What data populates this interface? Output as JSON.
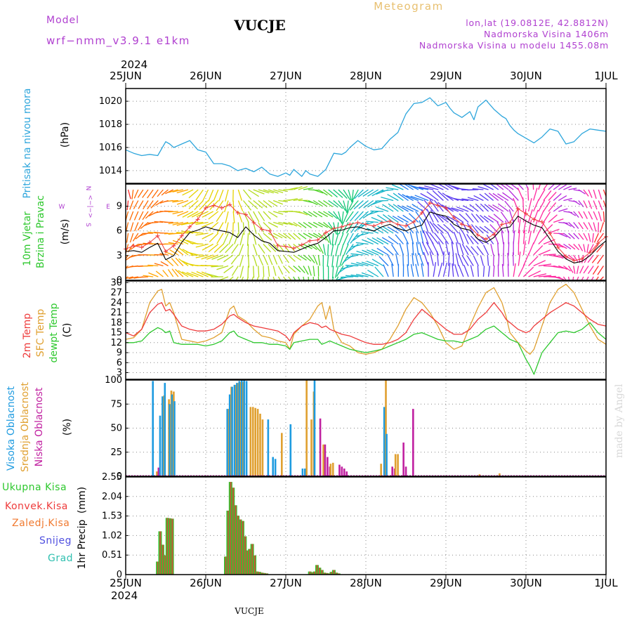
{
  "header": {
    "title": "VUCJE",
    "model_label": "Model",
    "model_name": "wrf−nmm_v3.9.1  e1km",
    "meteogram_label": "Meteogram",
    "coords": "lon,lat (19.0812E, 42.8812N)",
    "elevation": "Nadmorska Visina 1406m",
    "model_elevation": "Nadmorska Visina u modelu 1455.08m",
    "year_top": "2024",
    "year_bottom": "2024",
    "footer": "VUCJE",
    "watermark": "made by Angel"
  },
  "colors": {
    "pressure": "#2ea6dc",
    "temp2m": "#ee3b3b",
    "sfc": "#e0a030",
    "dew": "#2ec82e",
    "wind_black": "#000000",
    "wind_red": "#ee3b3b",
    "cloud_high": "#1e9be0",
    "cloud_mid": "#e0a030",
    "cloud_low": "#c020a0",
    "grid": "#888888",
    "precip_total": "#2ec82e",
    "precip_conv": "#ee3b3b",
    "precip_frozen": "#f07a30",
    "snow": "#5050e0",
    "hail": "#30c0b0",
    "watermark": "#d8d8d8",
    "purple_text": "#b040d0",
    "orange_text": "#e8c070"
  },
  "x_axis": {
    "labels": [
      "25JUN",
      "26JUN",
      "27JUN",
      "28JUN",
      "29JUN",
      "30JUN",
      "1JUL"
    ]
  },
  "chart_data": [
    {
      "type": "line",
      "panel": "pressure",
      "ylabel": "Pritisak na nivou mora",
      "unit": "(hPa)",
      "yticks": [
        1014,
        1016,
        1018,
        1020
      ],
      "ylim": [
        1012.9,
        1021.1
      ],
      "x_days": [
        0,
        0.1,
        0.2,
        0.3,
        0.4,
        0.5,
        0.55,
        0.6,
        0.7,
        0.8,
        0.9,
        1.0,
        1.1,
        1.2,
        1.3,
        1.4,
        1.5,
        1.6,
        1.7,
        1.8,
        1.9,
        2.0,
        2.05,
        2.1,
        2.2,
        2.25,
        2.3,
        2.4,
        2.5,
        2.6,
        2.7,
        2.75,
        2.8,
        2.9,
        3.0,
        3.1,
        3.2,
        3.3,
        3.4,
        3.5,
        3.6,
        3.7,
        3.8,
        3.9,
        4.0,
        4.05,
        4.1,
        4.2,
        4.3,
        4.35,
        4.4,
        4.5,
        4.6,
        4.7,
        4.75,
        4.8,
        4.85,
        4.9,
        5.0,
        5.1,
        5.2,
        5.3,
        5.4,
        5.5,
        5.6,
        5.7,
        5.8,
        5.9,
        6.0
      ],
      "series": [
        {
          "values": [
            1015.8,
            1015.5,
            1015.3,
            1015.4,
            1015.3,
            1016.5,
            1016.3,
            1016.0,
            1016.3,
            1016.6,
            1015.8,
            1015.6,
            1014.6,
            1014.6,
            1014.4,
            1014.0,
            1014.2,
            1013.9,
            1014.3,
            1013.7,
            1013.5,
            1013.8,
            1013.6,
            1014.1,
            1013.5,
            1014.0,
            1013.7,
            1013.5,
            1014.1,
            1015.5,
            1015.4,
            1015.6,
            1016.0,
            1016.6,
            1016.1,
            1015.8,
            1015.9,
            1016.7,
            1017.3,
            1018.9,
            1019.8,
            1019.9,
            1020.3,
            1019.6,
            1019.9,
            1019.4,
            1019.0,
            1018.6,
            1019.1,
            1018.4,
            1019.5,
            1020.1,
            1019.3,
            1018.7,
            1018.5,
            1017.9,
            1017.5,
            1017.2,
            1016.8,
            1016.4,
            1016.9,
            1017.6,
            1017.4,
            1016.3,
            1016.5,
            1017.2,
            1017.6,
            1017.5,
            1017.4
          ]
        }
      ]
    },
    {
      "type": "line",
      "panel": "wind",
      "ylabel_1": "10m Vjetar",
      "ylabel_2": "Brzina i Pravac",
      "unit": "(m/s)",
      "compass": {
        "n": "N",
        "s": "S",
        "w": "W",
        "e": "E",
        "arrows": "<−|−>"
      },
      "yticks": [
        0,
        3,
        6,
        9
      ],
      "ylim": [
        0,
        11.7
      ],
      "x_days": [
        0,
        0.1,
        0.2,
        0.3,
        0.4,
        0.5,
        0.6,
        0.7,
        0.8,
        0.9,
        1.0,
        1.1,
        1.2,
        1.3,
        1.4,
        1.5,
        1.6,
        1.7,
        1.8,
        1.9,
        2.0,
        2.1,
        2.2,
        2.3,
        2.4,
        2.5,
        2.6,
        2.7,
        2.8,
        2.9,
        3.0,
        3.1,
        3.2,
        3.3,
        3.4,
        3.5,
        3.6,
        3.7,
        3.8,
        3.9,
        4.0,
        4.1,
        4.2,
        4.3,
        4.4,
        4.5,
        4.6,
        4.7,
        4.8,
        4.9,
        5.0,
        5.1,
        5.2,
        5.3,
        5.4,
        5.5,
        5.6,
        5.7,
        5.8,
        5.9,
        6.0
      ],
      "series": [
        {
          "name": "speed",
          "values": [
            3.5,
            3.6,
            3.4,
            4.0,
            4.5,
            2.5,
            3.0,
            4.6,
            5.8,
            6.1,
            6.5,
            6.2,
            6.0,
            5.8,
            5.2,
            6.5,
            5.5,
            4.8,
            4.5,
            3.6,
            3.5,
            3.4,
            3.8,
            4.2,
            4.5,
            5.2,
            6.0,
            6.1,
            6.4,
            6.5,
            6.2,
            6.0,
            6.5,
            6.8,
            6.3,
            6.0,
            6.4,
            6.7,
            8.3,
            8.0,
            7.8,
            6.8,
            6.3,
            6.1,
            5.0,
            4.6,
            5.2,
            6.3,
            6.5,
            7.8,
            7.2,
            6.7,
            6.4,
            5.0,
            3.5,
            2.6,
            2.1,
            2.3,
            3.0,
            4.0,
            4.8
          ]
        },
        {
          "name": "gust",
          "values": [
            3.8,
            4.2,
            4.0,
            4.6,
            5.4,
            3.5,
            4.2,
            5.4,
            6.5,
            7.4,
            8.8,
            9.1,
            8.8,
            9.2,
            8.2,
            8.0,
            7.0,
            6.2,
            6.0,
            4.2,
            4.1,
            3.9,
            4.3,
            4.8,
            4.9,
            5.8,
            6.3,
            6.5,
            6.8,
            7.0,
            6.8,
            6.6,
            7.0,
            7.2,
            6.8,
            6.6,
            7.1,
            8.2,
            9.4,
            9.1,
            8.8,
            7.6,
            6.8,
            6.5,
            5.5,
            5.0,
            5.6,
            6.8,
            7.0,
            8.7,
            8.1,
            7.4,
            7.1,
            5.7,
            4.0,
            2.9,
            2.4,
            2.6,
            3.4,
            4.5,
            5.3
          ]
        }
      ]
    },
    {
      "type": "line",
      "panel": "temperature",
      "ylabel_1": "2m Temp",
      "ylabel_2": "SFC Temp",
      "ylabel_3": "dewpt Temp",
      "unit": "(C)",
      "yticks": [
        3,
        6,
        9,
        12,
        15,
        18,
        21,
        24,
        27,
        30
      ],
      "ylim": [
        1,
        30.5
      ],
      "x_days": [
        0,
        0.1,
        0.2,
        0.3,
        0.4,
        0.45,
        0.5,
        0.55,
        0.6,
        0.7,
        0.8,
        0.9,
        1.0,
        1.1,
        1.2,
        1.3,
        1.35,
        1.4,
        1.5,
        1.6,
        1.7,
        1.8,
        1.9,
        2.0,
        2.05,
        2.1,
        2.2,
        2.3,
        2.4,
        2.45,
        2.5,
        2.55,
        2.6,
        2.7,
        2.8,
        2.9,
        3.0,
        3.1,
        3.2,
        3.3,
        3.4,
        3.5,
        3.6,
        3.7,
        3.8,
        3.9,
        4.0,
        4.1,
        4.2,
        4.3,
        4.4,
        4.5,
        4.6,
        4.7,
        4.75,
        4.8,
        4.9,
        5.0,
        5.05,
        5.1,
        5.2,
        5.3,
        5.4,
        5.5,
        5.6,
        5.7,
        5.8,
        5.9,
        6.0
      ],
      "series": [
        {
          "name": "2m Temp",
          "values": [
            15,
            14,
            16,
            21,
            23.5,
            24,
            21.5,
            22,
            20.5,
            17,
            16,
            15.5,
            15.5,
            16,
            17.5,
            20,
            20.5,
            19.5,
            18,
            17,
            16.5,
            16,
            15.5,
            14,
            12.5,
            15,
            17,
            18,
            17.5,
            16.5,
            17,
            16,
            15.5,
            14.5,
            14,
            13,
            12,
            11.5,
            11.5,
            12,
            13,
            15,
            19,
            22,
            20,
            18,
            16,
            14.5,
            14.5,
            16,
            19,
            21,
            24,
            21,
            19,
            18,
            16,
            15,
            15.5,
            17,
            19,
            21,
            22.5,
            24,
            23,
            21,
            19,
            17.5,
            17
          ]
        },
        {
          "name": "SFC Temp",
          "values": [
            13,
            13.5,
            16,
            24,
            27.5,
            28,
            23,
            24,
            21,
            13,
            12.5,
            12,
            12.5,
            13.5,
            15,
            22,
            23,
            20,
            18.5,
            16,
            14,
            13.5,
            12.5,
            12,
            10,
            14.5,
            17,
            19,
            23,
            24,
            19,
            23,
            16,
            12,
            11,
            9,
            8.5,
            9,
            10,
            13,
            17,
            22,
            25.5,
            24,
            21,
            17,
            12,
            10,
            11,
            17,
            22.5,
            27,
            28.5,
            24,
            20,
            15,
            12,
            9.5,
            8.5,
            10,
            17,
            24,
            28,
            29.5,
            27,
            22,
            17,
            13,
            11.5
          ]
        },
        {
          "name": "dewpt Temp",
          "values": [
            12,
            12,
            12.5,
            15,
            16.5,
            16,
            15,
            15.5,
            12,
            11.5,
            11.5,
            11.5,
            11,
            11.5,
            12.5,
            15,
            15.5,
            14,
            13,
            12,
            12,
            11.5,
            11.5,
            11,
            10,
            12,
            12.5,
            13,
            13,
            11.5,
            12,
            12.5,
            12,
            11,
            10,
            9.5,
            9,
            9.5,
            10,
            11,
            12,
            13,
            14.5,
            15,
            14,
            13,
            12.5,
            12.5,
            12,
            13,
            14,
            16,
            17,
            15,
            14,
            13,
            12,
            7,
            5,
            2.5,
            9,
            12,
            15,
            15.5,
            15,
            16,
            18,
            15,
            13
          ]
        }
      ]
    },
    {
      "type": "bar",
      "panel": "clouds",
      "ylabel_1": "Visoka Oblacnost",
      "ylabel_2": "Srednja Oblacnost",
      "ylabel_3": "Niska Oblacnost",
      "unit": "(%)",
      "yticks": [
        0,
        25,
        50,
        75,
        100
      ],
      "ylim": [
        0,
        100
      ],
      "x_days": [
        0.36,
        0.39,
        0.45,
        0.48,
        0.51,
        0.54,
        0.57,
        0.6,
        0.63,
        0.66,
        1.26,
        1.29,
        1.32,
        1.35,
        1.38,
        1.41,
        1.44,
        1.47,
        1.5,
        1.53,
        1.56,
        1.59,
        1.62,
        1.65,
        1.68,
        1.71,
        1.74,
        1.77,
        1.8,
        1.83,
        1.86,
        1.89,
        1.92,
        1.95,
        1.98,
        2.08,
        2.2,
        2.23,
        2.26,
        2.29,
        2.32,
        2.35,
        2.38,
        2.41,
        2.44,
        2.47,
        2.5,
        2.53,
        2.56,
        2.59,
        2.62,
        2.65,
        2.68,
        2.71,
        2.74,
        3.16,
        3.19,
        3.22,
        3.25,
        3.28,
        3.31,
        3.34,
        3.37,
        3.4,
        3.45,
        3.48,
        3.51,
        3.54,
        3.57,
        4.42,
        4.67,
        5.4,
        5.43
      ],
      "series": [
        {
          "name": "Visoka Oblacnost",
          "values": [
            99,
            0,
            63,
            83,
            97,
            0,
            75,
            85,
            78,
            0,
            0,
            70,
            85,
            93,
            95,
            97,
            99,
            100,
            100,
            99,
            0,
            0,
            0,
            0,
            0,
            0,
            0,
            0,
            59,
            0,
            20,
            18,
            0,
            0,
            0,
            54,
            0,
            8,
            8,
            0,
            0,
            0,
            100,
            0,
            0,
            0,
            0,
            0,
            0,
            0,
            0,
            0,
            0,
            0,
            0,
            0,
            0,
            0,
            72,
            44,
            0,
            0,
            0,
            0,
            0,
            0,
            0,
            0,
            0,
            0,
            0,
            0,
            0
          ]
        },
        {
          "name": "Srednja Oblacnost",
          "values": [
            0,
            5,
            0,
            84,
            0,
            80,
            89,
            88,
            0,
            0,
            0,
            70,
            93,
            0,
            95,
            97,
            98,
            98,
            0,
            0,
            72,
            72,
            71,
            70,
            65,
            59,
            0,
            0,
            0,
            0,
            0,
            0,
            0,
            45,
            0,
            0,
            0,
            0,
            100,
            0,
            59,
            88,
            0,
            0,
            0,
            33,
            0,
            0,
            13,
            14,
            0,
            0,
            0,
            0,
            0,
            0,
            13,
            0,
            100,
            0,
            0,
            0,
            23,
            23,
            0,
            0,
            0,
            0,
            0,
            2,
            3,
            0,
            0
          ]
        },
        {
          "name": "Niska Oblacnost",
          "values": [
            0,
            9,
            0,
            0,
            0,
            0,
            0,
            0,
            0,
            0,
            0,
            0,
            0,
            0,
            0,
            0,
            0,
            0,
            0,
            0,
            0,
            0,
            0,
            0,
            0,
            0,
            0,
            0,
            0,
            0,
            0,
            0,
            0,
            0,
            0,
            0,
            0,
            0,
            0,
            0,
            0,
            0,
            0,
            60,
            0,
            33,
            20,
            10,
            0,
            0,
            0,
            12,
            10,
            8,
            5,
            0,
            0,
            0,
            0,
            0,
            10,
            8,
            0,
            0,
            35,
            10,
            0,
            0,
            70,
            0,
            0,
            0,
            0
          ]
        }
      ]
    },
    {
      "type": "bar",
      "panel": "precip",
      "ylabel": "1hr Precip",
      "unit": "(mm)",
      "legend": [
        "Ukupna Kisa",
        "Konvek.Kisa",
        "Zaledj.Kisa",
        "Snijeg",
        "Grad"
      ],
      "yticks": [
        0,
        0.51,
        1.02,
        1.53,
        2.04,
        2.55
      ],
      "ylim": [
        0,
        2.55
      ],
      "x_days": [
        0.4,
        0.43,
        0.46,
        0.49,
        0.52,
        0.55,
        0.58,
        1.25,
        1.28,
        1.31,
        1.34,
        1.37,
        1.4,
        1.43,
        1.46,
        1.49,
        1.52,
        1.55,
        1.58,
        1.61,
        1.64,
        1.67,
        1.7,
        1.73,
        1.76,
        2.3,
        2.33,
        2.36,
        2.39,
        2.42,
        2.45,
        2.48,
        2.51,
        2.54,
        2.57,
        2.6,
        2.63,
        2.66
      ],
      "series": [
        {
          "name": "Ukupna Kisa",
          "values": [
            0.34,
            1.13,
            0.78,
            0.5,
            1.48,
            1.47,
            1.46,
            0.47,
            1.67,
            2.42,
            2.27,
            1.81,
            1.54,
            1.44,
            1.4,
            1.0,
            0.63,
            0.67,
            0.8,
            0.5,
            0.08,
            0.07,
            0.05,
            0.04,
            0.03,
            0.08,
            0.06,
            0.08,
            0.25,
            0.18,
            0.12,
            0.05,
            0.04,
            0.03,
            0.07,
            0.12,
            0.05,
            0.03
          ]
        },
        {
          "name": "Konvek.Kisa",
          "values": [
            0.34,
            1.13,
            0.78,
            0.5,
            1.48,
            1.47,
            1.46,
            0.47,
            1.67,
            2.42,
            2.27,
            1.81,
            1.54,
            1.44,
            1.4,
            1.0,
            0.63,
            0.67,
            0.8,
            0.5,
            0.08,
            0.07,
            0.05,
            0.04,
            0.03,
            0.08,
            0.06,
            0.08,
            0.25,
            0.18,
            0.12,
            0.05,
            0.04,
            0.03,
            0.07,
            0.12,
            0.05,
            0.03
          ]
        }
      ]
    }
  ]
}
